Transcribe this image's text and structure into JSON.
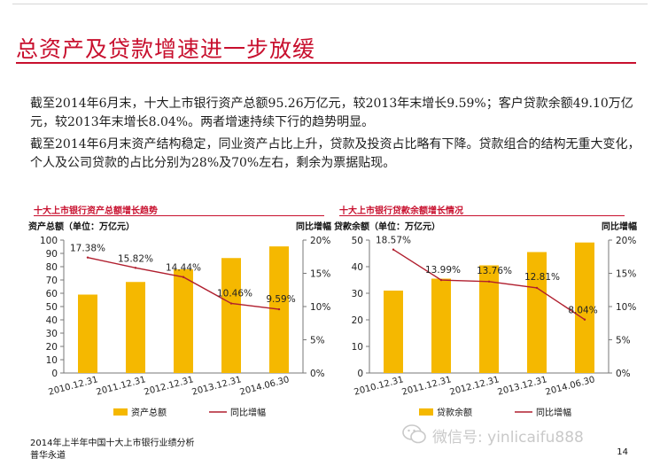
{
  "slide": {
    "title": "总资产及贷款增速进一步放缓",
    "para1": "截至2014年6月末，十大上市银行资产总额95.26万亿元，较2013年末增长9.59%；客户贷款余额49.10万亿元，较2013年末增长8.04%。两者增速持续下行的趋势明显。",
    "para2": "截至2014年6月末资产结构稳定，同业资产占比上升，贷款及投资占比略有下降。贷款组合的结构无重大变化，个人及公司贷款的占比分别为28%及70%左右，剩余为票据贴现。",
    "footer_line1": "2014年上半年中国十大上市银行业绩分析",
    "footer_line2": "普华永道",
    "page_number": "14",
    "watermark": "微信号: yinlicaifu888",
    "colors": {
      "accent": "#c8102e",
      "bar": "#f5b800",
      "line": "#b01e2e"
    }
  },
  "chart_data": [
    {
      "type": "bar",
      "title": "十大上市银行资产总额增长趋势",
      "ylabel": "资产总额（单位：万亿元）",
      "y2label": "同比增幅",
      "categories": [
        "2010.12.31",
        "2011.12.31",
        "2012.12.31",
        "2013.12.31",
        "2014.06.30"
      ],
      "values": [
        59,
        68.5,
        78,
        86.5,
        95.26
      ],
      "ylim": [
        0,
        100
      ],
      "yticks": [
        0,
        10,
        20,
        30,
        40,
        50,
        60,
        70,
        80,
        90,
        100
      ],
      "y2lim": [
        0,
        20
      ],
      "y2ticks": [
        "0%",
        "5%",
        "10%",
        "15%",
        "20%"
      ],
      "line_values": [
        17.38,
        15.82,
        14.44,
        10.46,
        9.59
      ],
      "line_labels": [
        "17.38%",
        "15.82%",
        "14.44%",
        "10.46%",
        "9.59%"
      ],
      "legend": [
        "资产总额",
        "同比增幅"
      ]
    },
    {
      "type": "bar",
      "title": "十大上市银行贷款余额增长情况",
      "ylabel": "贷款余额（单位：万亿元）",
      "y2label": "同比增幅",
      "categories": [
        "2010.12.31",
        "2011.12.31",
        "2012.12.31",
        "2013.12.31",
        "2014.06.30"
      ],
      "values": [
        31,
        35.5,
        40.5,
        45.5,
        49.1
      ],
      "ylim": [
        0,
        50
      ],
      "yticks": [
        0,
        10,
        20,
        30,
        40,
        50
      ],
      "y2lim": [
        0,
        20
      ],
      "y2ticks": [
        "0%",
        "5%",
        "10%",
        "15%",
        "20%"
      ],
      "line_values": [
        18.57,
        13.99,
        13.76,
        12.81,
        8.04
      ],
      "line_labels": [
        "18.57%",
        "13.99%",
        "13.76%",
        "12.81%",
        "8.04%"
      ],
      "legend": [
        "贷款余额",
        "同比增幅"
      ]
    }
  ]
}
